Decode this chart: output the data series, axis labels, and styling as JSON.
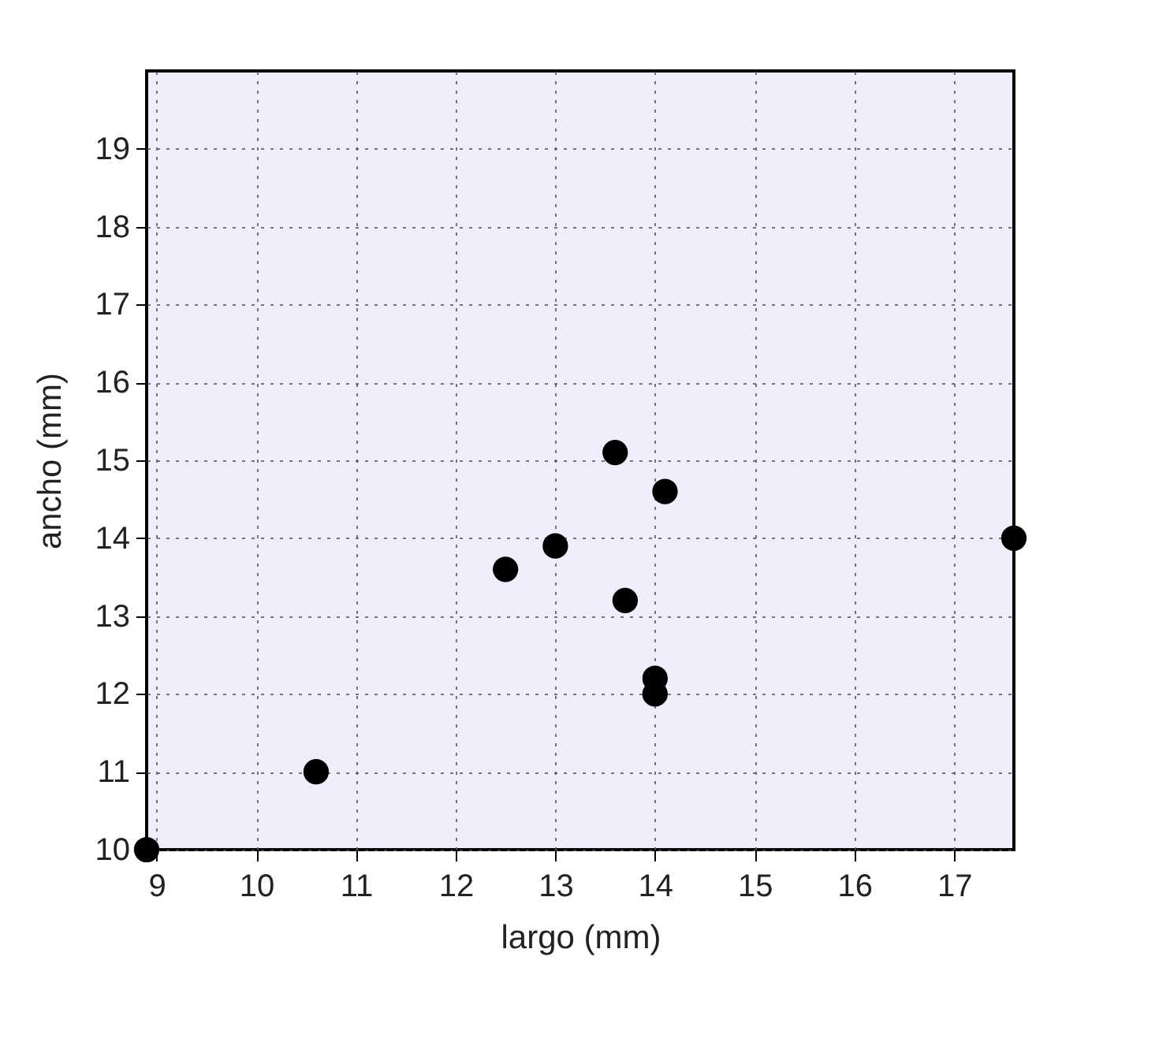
{
  "chart_data": {
    "type": "scatter",
    "xlabel": "largo (mm)",
    "ylabel": "ancho (mm)",
    "x": [
      8.9,
      10.6,
      12.5,
      13,
      13.6,
      14.1,
      13.7,
      14,
      14,
      17.6
    ],
    "values": [
      10,
      11,
      13.6,
      13.9,
      15.1,
      14.6,
      13.2,
      12.2,
      12,
      14
    ],
    "color": "#000000",
    "marker": "circle",
    "xlim": [
      8.9,
      17.6
    ],
    "xticks": [
      9,
      10,
      11,
      12,
      13,
      14,
      15,
      16,
      17
    ],
    "ylim": [
      10,
      20
    ],
    "yticks": [
      10,
      11,
      12,
      13,
      14,
      15,
      16,
      17,
      18,
      19
    ],
    "grid": true
  }
}
